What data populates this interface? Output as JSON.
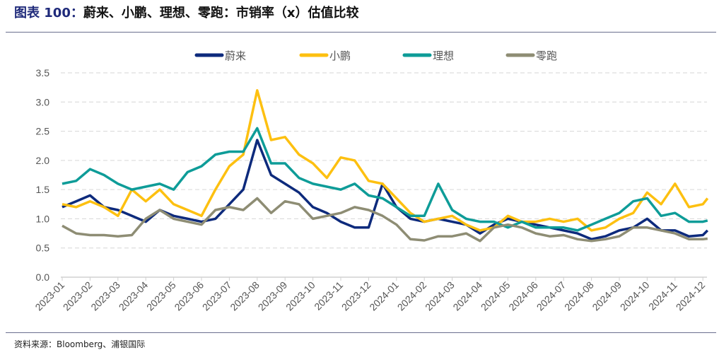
{
  "header": {
    "title_prefix": "图表 100：",
    "title": "蔚来、小鹏、理想、零跑：市销率（x）估值比较"
  },
  "footer": {
    "source": "资料来源：Bloomberg、浦银国际"
  },
  "chart_data": {
    "type": "line",
    "title": "",
    "xlabel": "",
    "ylabel": "",
    "ylim": [
      0,
      3.5
    ],
    "yticks": [
      "0.0",
      "0.5",
      "1.0",
      "1.5",
      "2.0",
      "2.5",
      "3.0",
      "3.5"
    ],
    "xticks": [
      "2023-01",
      "2023-02",
      "2023-03",
      "2023-04",
      "2023-05",
      "2023-06",
      "2023-07",
      "2023-08",
      "2023-09",
      "2023-10",
      "2023-11",
      "2023-12",
      "2024-01",
      "2024-02",
      "2024-03",
      "2024-04",
      "2024-05",
      "2024-06",
      "2024-07",
      "2024-08",
      "2024-09",
      "2024-10",
      "2024-11",
      "2024-12"
    ],
    "grid": "horizontal-dashed",
    "legend": "top",
    "x": [
      "2023-01-01",
      "2023-01-16",
      "2023-02-01",
      "2023-02-16",
      "2023-03-01",
      "2023-03-16",
      "2023-04-01",
      "2023-04-16",
      "2023-05-01",
      "2023-05-16",
      "2023-06-01",
      "2023-06-16",
      "2023-07-01",
      "2023-07-16",
      "2023-08-01",
      "2023-08-16",
      "2023-09-01",
      "2023-09-16",
      "2023-10-01",
      "2023-10-16",
      "2023-11-01",
      "2023-11-16",
      "2023-12-01",
      "2023-12-16",
      "2024-01-01",
      "2024-01-16",
      "2024-02-01",
      "2024-02-16",
      "2024-03-01",
      "2024-03-16",
      "2024-04-01",
      "2024-04-16",
      "2024-05-01",
      "2024-05-16",
      "2024-06-01",
      "2024-06-16",
      "2024-07-01",
      "2024-07-16",
      "2024-08-01",
      "2024-08-16",
      "2024-09-01",
      "2024-09-16",
      "2024-10-01",
      "2024-10-16",
      "2024-11-01",
      "2024-11-16",
      "2024-12-01",
      "2024-12-06"
    ],
    "series": [
      {
        "name": "蔚来",
        "color": "#0D2A7C",
        "values": [
          1.2,
          1.3,
          1.4,
          1.2,
          1.15,
          1.05,
          0.95,
          1.15,
          1.05,
          1.0,
          0.95,
          1.0,
          1.25,
          1.5,
          2.35,
          1.75,
          1.6,
          1.45,
          1.2,
          1.1,
          0.95,
          0.85,
          0.85,
          1.6,
          1.2,
          1.0,
          0.95,
          1.0,
          0.95,
          0.9,
          0.75,
          0.9,
          1.0,
          0.95,
          0.9,
          0.85,
          0.8,
          0.75,
          0.65,
          0.7,
          0.8,
          0.85,
          1.0,
          0.8,
          0.8,
          0.7,
          0.72,
          0.8
        ]
      },
      {
        "name": "小鹏",
        "color": "#FDC010",
        "values": [
          1.25,
          1.2,
          1.3,
          1.2,
          1.05,
          1.5,
          1.3,
          1.5,
          1.25,
          1.15,
          1.05,
          1.5,
          1.9,
          2.1,
          3.2,
          2.35,
          2.4,
          2.1,
          1.95,
          1.7,
          2.05,
          2.0,
          1.65,
          1.6,
          1.35,
          1.1,
          0.95,
          1.0,
          1.05,
          0.9,
          0.8,
          0.85,
          1.05,
          0.95,
          0.95,
          1.0,
          0.95,
          1.0,
          0.8,
          0.85,
          1.0,
          1.1,
          1.45,
          1.25,
          1.6,
          1.2,
          1.25,
          1.35
        ]
      },
      {
        "name": "理想",
        "color": "#0E9C98",
        "values": [
          1.6,
          1.65,
          1.85,
          1.75,
          1.6,
          1.5,
          1.55,
          1.6,
          1.5,
          1.8,
          1.9,
          2.1,
          2.15,
          2.15,
          2.55,
          1.95,
          1.95,
          1.7,
          1.6,
          1.55,
          1.5,
          1.6,
          1.4,
          1.35,
          1.2,
          1.05,
          1.05,
          1.6,
          1.15,
          1.0,
          0.95,
          0.95,
          0.85,
          0.95,
          0.85,
          0.85,
          0.85,
          0.8,
          0.9,
          1.0,
          1.1,
          1.3,
          1.35,
          1.05,
          1.1,
          0.95,
          0.95,
          0.97
        ]
      },
      {
        "name": "零跑",
        "color": "#8E8D74",
        "values": [
          0.88,
          0.75,
          0.72,
          0.72,
          0.7,
          0.72,
          1.0,
          1.15,
          1.0,
          0.95,
          0.9,
          1.15,
          1.2,
          1.15,
          1.35,
          1.1,
          1.3,
          1.25,
          1.0,
          1.05,
          1.1,
          1.2,
          1.15,
          1.05,
          0.9,
          0.65,
          0.63,
          0.7,
          0.7,
          0.75,
          0.62,
          0.85,
          0.9,
          0.85,
          0.75,
          0.7,
          0.72,
          0.65,
          0.62,
          0.65,
          0.7,
          0.85,
          0.85,
          0.8,
          0.75,
          0.65,
          0.65,
          0.66
        ]
      }
    ]
  }
}
